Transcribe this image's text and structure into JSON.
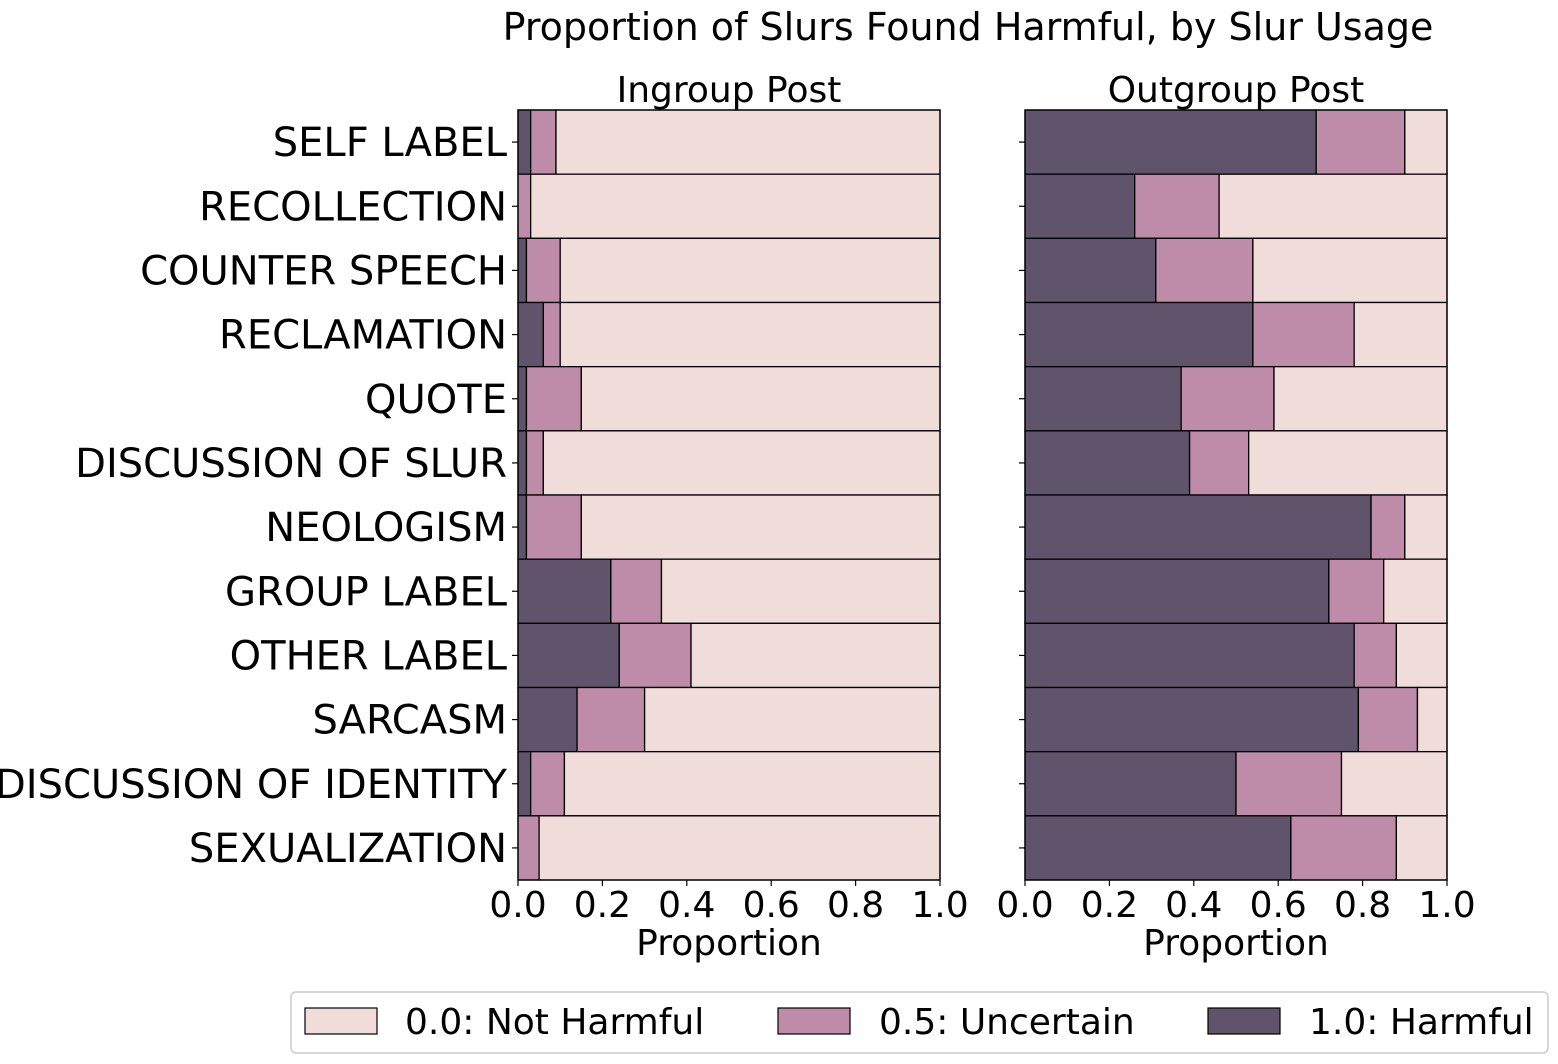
{
  "chart_data": {
    "type": "bar",
    "orientation": "horizontal",
    "stacked": true,
    "normalized": true,
    "title": "Proportion of Slurs Found Harmful, by Slur Usage",
    "categories": [
      "SELF LABEL",
      "RECOLLECTION",
      "COUNTER SPEECH",
      "RECLAMATION",
      "QUOTE",
      "DISCUSSION OF SLUR",
      "NEOLOGISM",
      "GROUP LABEL",
      "OTHER LABEL",
      "SARCASM",
      "DISCUSSION OF IDENTITY",
      "SEXUALIZATION"
    ],
    "xlabel": "Proportion",
    "xlim": [
      0,
      1
    ],
    "xticks": [
      "0.0",
      "0.2",
      "0.4",
      "0.6",
      "0.8",
      "1.0"
    ],
    "legend_position": "bottom",
    "legend": [
      {
        "label": "0.0: Not Harmful",
        "color": "#f0dcd8"
      },
      {
        "label": "0.5: Uncertain",
        "color": "#be8ba8"
      },
      {
        "label": "1.0: Harmful",
        "color": "#60536c"
      }
    ],
    "panels": [
      {
        "title": "Ingroup Post",
        "series": [
          {
            "name": "1.0: Harmful",
            "values": [
              0.03,
              0.0,
              0.02,
              0.06,
              0.02,
              0.02,
              0.02,
              0.22,
              0.24,
              0.14,
              0.03,
              0.0
            ]
          },
          {
            "name": "0.5: Uncertain",
            "values": [
              0.06,
              0.03,
              0.08,
              0.04,
              0.13,
              0.04,
              0.13,
              0.12,
              0.17,
              0.16,
              0.08,
              0.05
            ]
          },
          {
            "name": "0.0: Not Harmful",
            "values": [
              0.91,
              0.97,
              0.9,
              0.9,
              0.85,
              0.94,
              0.85,
              0.66,
              0.59,
              0.7,
              0.89,
              0.95
            ]
          }
        ]
      },
      {
        "title": "Outgroup Post",
        "series": [
          {
            "name": "1.0: Harmful",
            "values": [
              0.69,
              0.26,
              0.31,
              0.54,
              0.37,
              0.39,
              0.82,
              0.72,
              0.78,
              0.79,
              0.5,
              0.63
            ]
          },
          {
            "name": "0.5: Uncertain",
            "values": [
              0.21,
              0.2,
              0.23,
              0.24,
              0.22,
              0.14,
              0.08,
              0.13,
              0.1,
              0.14,
              0.25,
              0.25
            ]
          },
          {
            "name": "0.0: Not Harmful",
            "values": [
              0.1,
              0.54,
              0.46,
              0.22,
              0.41,
              0.47,
              0.1,
              0.15,
              0.12,
              0.07,
              0.25,
              0.12
            ]
          }
        ]
      }
    ]
  }
}
